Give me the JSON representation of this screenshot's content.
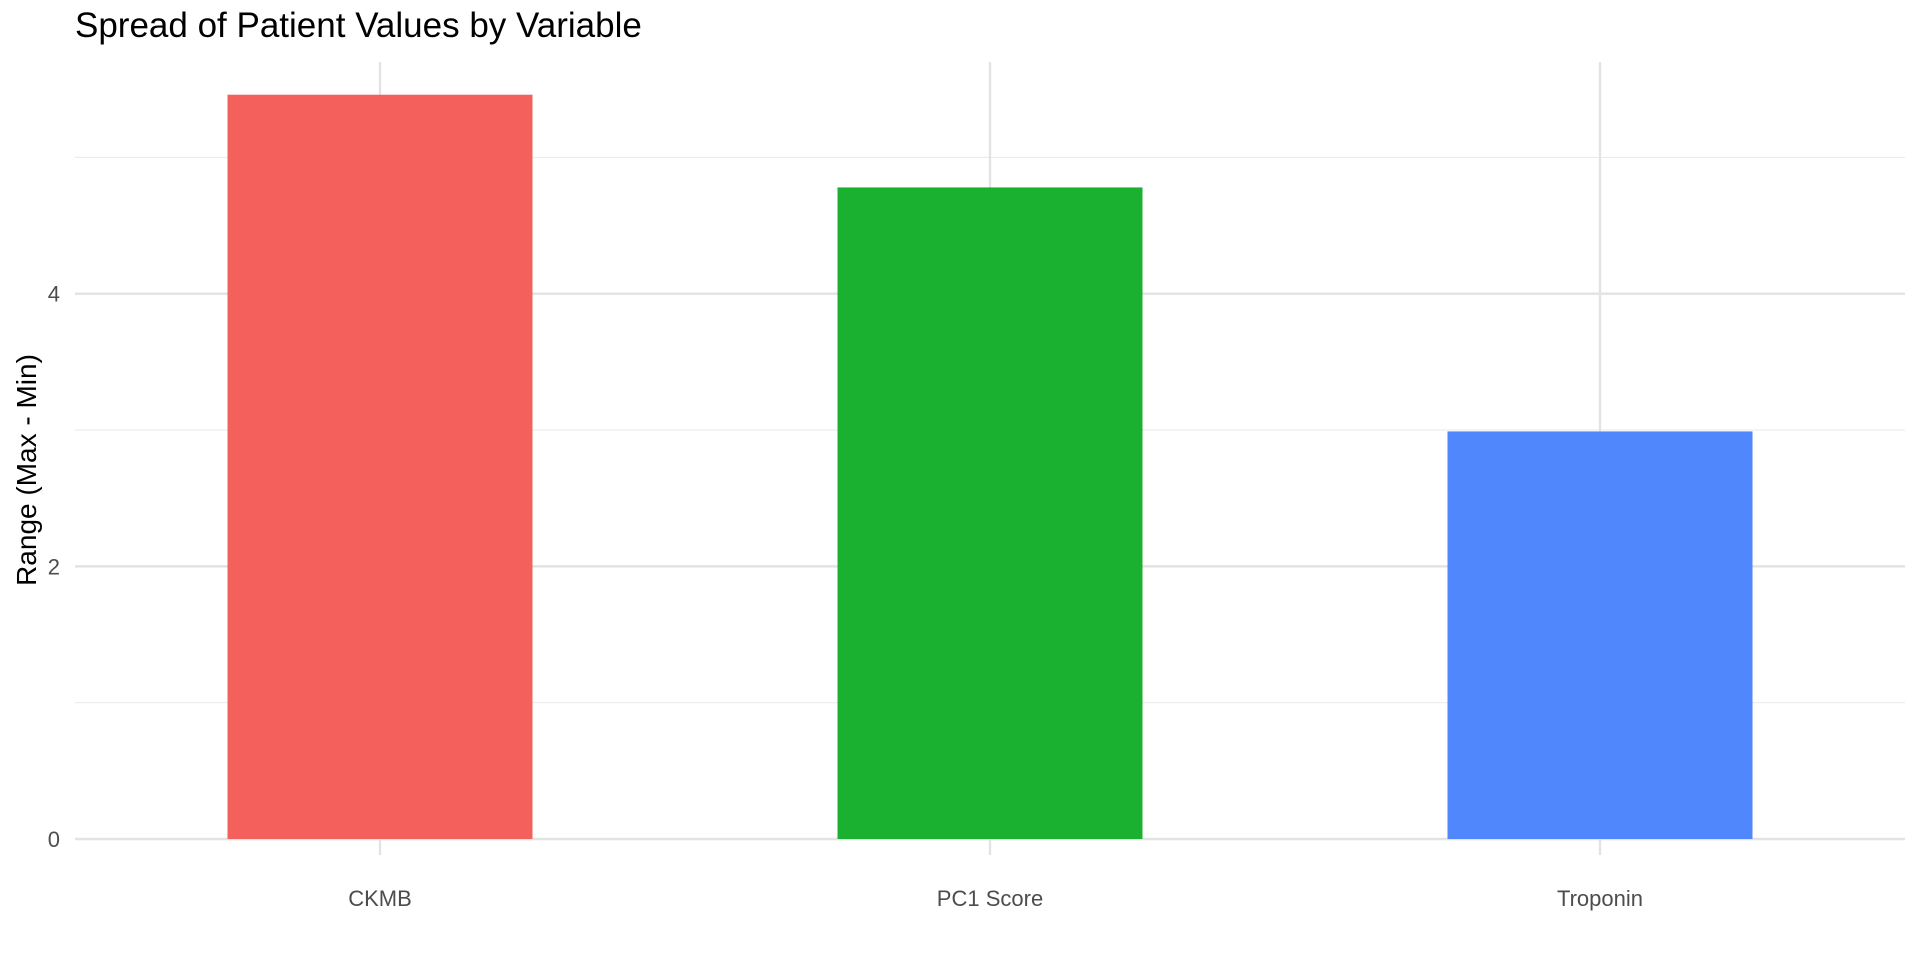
{
  "chart_data": {
    "type": "bar",
    "title": "Spread of Patient Values by Variable",
    "xlabel": "",
    "ylabel": "Range (Max - Min)",
    "categories": [
      "CKMB",
      "PC1 Score",
      "Troponin"
    ],
    "values": [
      5.46,
      4.78,
      2.99
    ],
    "colors": [
      "#F4615C",
      "#1BB130",
      "#5087FD"
    ],
    "ylim": [
      0,
      5.7
    ],
    "yticks": [
      0,
      2,
      4
    ],
    "grid": true,
    "legend": "none"
  }
}
